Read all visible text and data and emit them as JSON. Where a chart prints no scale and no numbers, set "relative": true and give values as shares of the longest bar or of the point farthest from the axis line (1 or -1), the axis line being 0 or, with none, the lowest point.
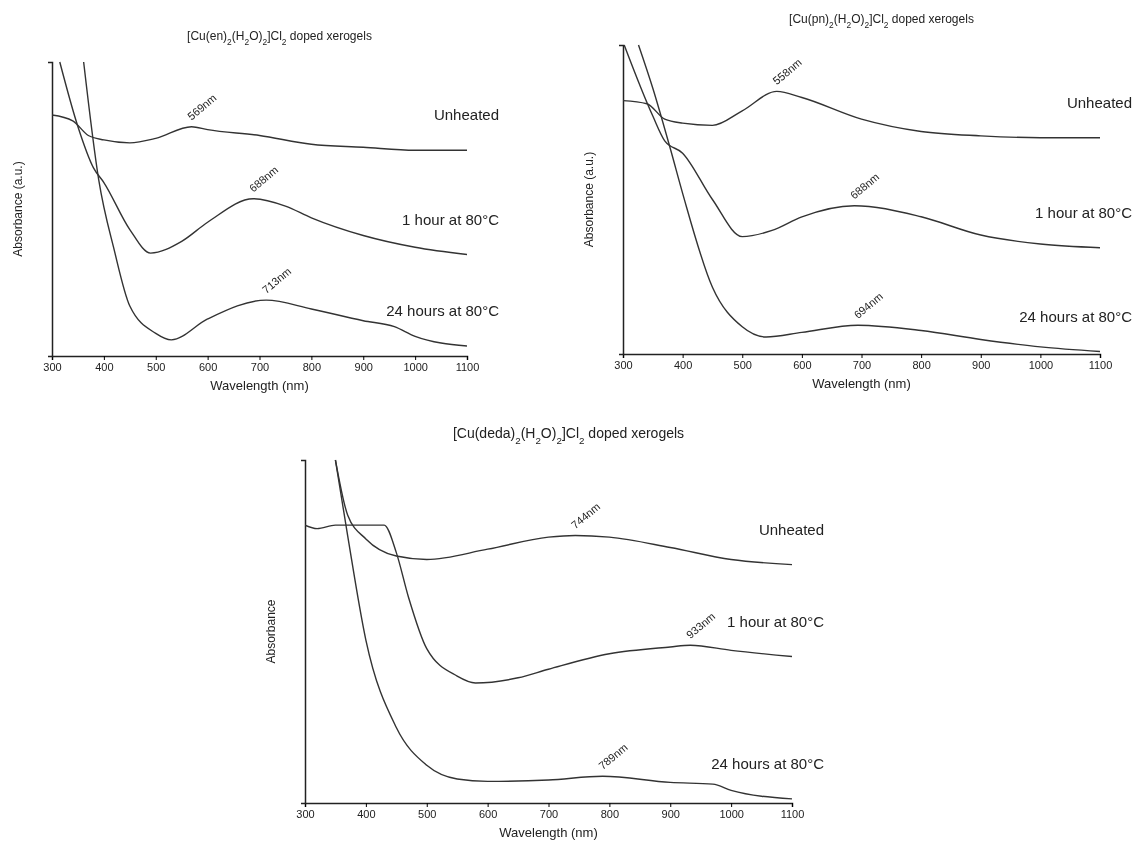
{
  "chart_data": [
    {
      "type": "line",
      "title": "[Cu(en)$_{2}$(H$_{2}$O)$_{2}$]Cl$_{2}$ doped xerogels",
      "xlabel": "Wavelength (nm)",
      "ylabel": "Absorbance (a.u.)",
      "relative": true,
      "xlim": [
        300,
        1100
      ],
      "xticks": [
        300,
        400,
        500,
        600,
        700,
        800,
        900,
        1000,
        1100
      ],
      "series": [
        {
          "name": "Unheated",
          "color": "#333333",
          "x": [
            300,
            340,
            370,
            400,
            450,
            500,
            569,
            600,
            700,
            800,
            900,
            1000,
            1100
          ],
          "values": [
            0.82,
            0.8,
            0.75,
            0.735,
            0.725,
            0.74,
            0.78,
            0.77,
            0.75,
            0.72,
            0.71,
            0.7,
            0.7
          ]
        },
        {
          "name": "1 hour at 80°C",
          "color": "#333333",
          "x": [
            315,
            350,
            380,
            400,
            450,
            490,
            550,
            600,
            688,
            750,
            800,
            900,
            1000,
            1100
          ],
          "values": [
            1.0,
            0.78,
            0.64,
            0.59,
            0.43,
            0.35,
            0.39,
            0.455,
            0.535,
            0.51,
            0.47,
            0.41,
            0.37,
            0.345
          ]
        },
        {
          "name": "24 hours at 80°C",
          "color": "#333333",
          "x": [
            361,
            390,
            420,
            450,
            500,
            530,
            600,
            713,
            800,
            900,
            960,
            1000,
            1100
          ],
          "values": [
            1.0,
            0.6,
            0.36,
            0.17,
            0.077,
            0.055,
            0.126,
            0.19,
            0.16,
            0.12,
            0.1,
            0.067,
            0.034
          ]
        }
      ],
      "annotations": [
        {
          "text": "569nm",
          "x": 569,
          "y": 0.78
        },
        {
          "text": "688nm",
          "x": 688,
          "y": 0.535
        },
        {
          "text": "713nm",
          "x": 713,
          "y": 0.19
        }
      ]
    },
    {
      "type": "line",
      "title": "[Cu(pn)$_{2}$(H$_{2}$O)$_{2}$]Cl$_{2}$ doped xerogels",
      "xlabel": "Wavelength (nm)",
      "ylabel": "Absorbance (a.u.)",
      "relative": true,
      "xlim": [
        300,
        1100
      ],
      "xticks": [
        300,
        400,
        500,
        600,
        700,
        800,
        900,
        1000,
        1100
      ],
      "series": [
        {
          "name": "Unheated",
          "color": "#333333",
          "x": [
            300,
            340,
            370,
            400,
            450,
            500,
            558,
            600,
            700,
            800,
            900,
            1000,
            1100
          ],
          "values": [
            0.82,
            0.81,
            0.76,
            0.747,
            0.74,
            0.787,
            0.85,
            0.83,
            0.76,
            0.72,
            0.706,
            0.7,
            0.7
          ]
        },
        {
          "name": "1 hour at 80°C",
          "color": "#333333",
          "x": [
            302,
            350,
            370,
            400,
            450,
            500,
            550,
            600,
            688,
            800,
            900,
            1000,
            1100
          ],
          "values": [
            1.0,
            0.77,
            0.69,
            0.65,
            0.5,
            0.38,
            0.4,
            0.444,
            0.48,
            0.444,
            0.385,
            0.356,
            0.344
          ]
        },
        {
          "name": "24 hours at 80°C",
          "color": "#333333",
          "x": [
            326,
            350,
            380,
            400,
            450,
            500,
            540,
            600,
            694,
            800,
            900,
            1000,
            1100
          ],
          "values": [
            1.0,
            0.86,
            0.66,
            0.52,
            0.216,
            0.088,
            0.055,
            0.07,
            0.093,
            0.076,
            0.047,
            0.023,
            0.008
          ]
        }
      ],
      "annotations": [
        {
          "text": "558nm",
          "x": 558,
          "y": 0.85
        },
        {
          "text": "688nm",
          "x": 688,
          "y": 0.48
        },
        {
          "text": "694nm",
          "x": 694,
          "y": 0.093
        }
      ]
    },
    {
      "type": "line",
      "title": "[Cu(deda)$_{2}$(H$_{2}$O)$_{2}$]Cl$_{2}$ doped xerogels",
      "xlabel": "Wavelength (nm)",
      "ylabel": "Absorbance",
      "relative": true,
      "xlim": [
        300,
        1100
      ],
      "xticks": [
        300,
        400,
        500,
        600,
        700,
        800,
        900,
        1000,
        1100
      ],
      "series": [
        {
          "name": "Unheated",
          "color": "#333333",
          "x": [
            350,
            370,
            400,
            450,
            500,
            600,
            700,
            744,
            800,
            900,
            1000,
            1100
          ],
          "values": [
            1.0,
            0.84,
            0.77,
            0.72,
            0.71,
            0.74,
            0.775,
            0.78,
            0.775,
            0.745,
            0.71,
            0.695
          ]
        },
        {
          "name": "1 hour at 80°C",
          "color": "#333333",
          "x": [
            300,
            320,
            350,
            430,
            450,
            470,
            500,
            550,
            580,
            650,
            700,
            800,
            900,
            933,
            1000,
            1100
          ],
          "values": [
            0.81,
            0.8,
            0.81,
            0.81,
            0.73,
            0.6,
            0.45,
            0.37,
            0.35,
            0.365,
            0.39,
            0.435,
            0.455,
            0.46,
            0.445,
            0.427
          ]
        },
        {
          "name": "24 hours at 80°C",
          "color": "#333333",
          "x": [
            350,
            370,
            400,
            450,
            500,
            550,
            600,
            700,
            789,
            900,
            970,
            1000,
            1100
          ],
          "values": [
            1.0,
            0.78,
            0.475,
            0.22,
            0.11,
            0.07,
            0.063,
            0.067,
            0.078,
            0.06,
            0.055,
            0.037,
            0.012
          ]
        }
      ],
      "annotations": [
        {
          "text": "744nm",
          "x": 744,
          "y": 0.78
        },
        {
          "text": "933nm",
          "x": 933,
          "y": 0.46
        },
        {
          "text": "789nm",
          "x": 789,
          "y": 0.078
        }
      ]
    }
  ]
}
